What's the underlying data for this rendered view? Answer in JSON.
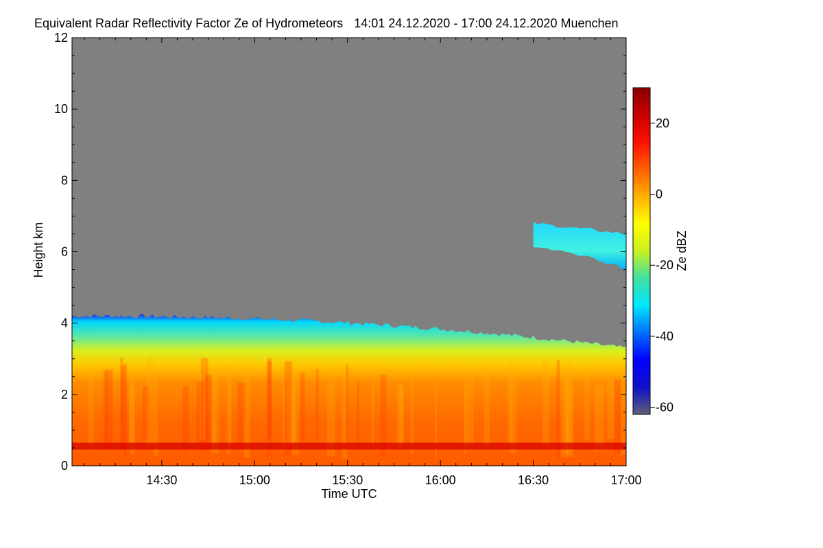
{
  "chart_data": {
    "type": "heatmap",
    "title": "Equivalent Radar Reflectivity Factor Ze of Hydrometeors",
    "time_range": "14:01 24.12.2020 - 17:00 24.12.2020",
    "location": "Muenchen",
    "xlabel": "Time UTC",
    "ylabel": "Height km",
    "x_range": [
      "14:01",
      "17:00"
    ],
    "x_ticks": [
      "14:30",
      "15:00",
      "15:30",
      "16:00",
      "16:30",
      "17:00"
    ],
    "ylim": [
      0,
      12
    ],
    "y_ticks": [
      0,
      2,
      4,
      6,
      8,
      10,
      12
    ],
    "colorbar": {
      "label": "Ze dBZ",
      "range": [
        -62,
        30
      ],
      "ticks": [
        -60,
        -40,
        -20,
        0,
        20
      ]
    },
    "no_data_color": "#808080",
    "colormap": [
      "#5f5f7a",
      "#1010c8",
      "#0000ff",
      "#0070ff",
      "#00e6ff",
      "#40e0a0",
      "#c8f020",
      "#ffff00",
      "#ffb000",
      "#ff6000",
      "#ff1000",
      "#c80000",
      "#8a0000"
    ],
    "features": [
      {
        "name": "precipitation layer",
        "height_range_km": [
          0,
          4.2
        ],
        "ze_range_dbz": [
          -40,
          25
        ]
      },
      {
        "name": "melting layer bright band",
        "height_km": 0.55,
        "ze_dbz": 25
      },
      {
        "name": "upper cloud layer",
        "time_range": [
          "16:30",
          "17:00"
        ],
        "height_range_km": [
          5.5,
          6.8
        ],
        "ze_range_dbz": [
          -30,
          -15
        ]
      }
    ]
  }
}
